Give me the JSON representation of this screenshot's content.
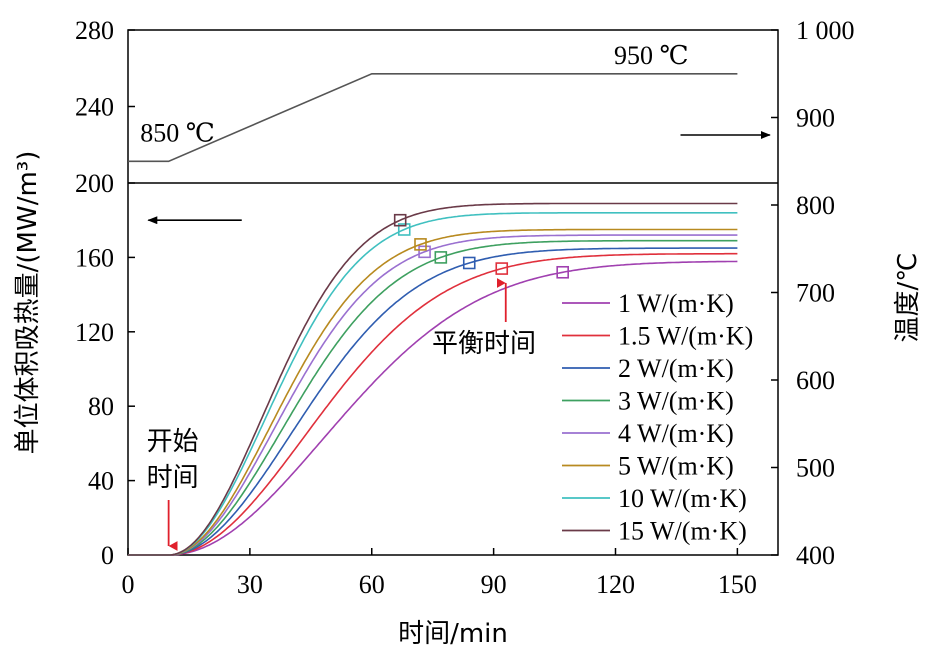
{
  "chart_data": {
    "type": "line",
    "xlabel": "时间/min",
    "ylabel_left": "单位体积吸热量/(MW/m³)",
    "ylabel_right": "温度/℃",
    "x_ticks": [
      "0",
      "30",
      "60",
      "90",
      "120",
      "150"
    ],
    "xlim": [
      0,
      160
    ],
    "left_axis": {
      "ylim": [
        0,
        200
      ],
      "ticks": [
        "0",
        "40",
        "80",
        "120",
        "160"
      ],
      "top_ylim": [
        200,
        280
      ],
      "top_ticks": [
        "200",
        "240",
        "280"
      ]
    },
    "right_axis": {
      "ylim": [
        400,
        1000
      ],
      "ticks": [
        "400",
        "500",
        "600",
        "700",
        "800",
        "900",
        "1 000"
      ]
    },
    "temperature_series": {
      "x": [
        0,
        10,
        60,
        150
      ],
      "y": [
        850,
        850,
        950,
        950
      ],
      "start_label": "850 ℃",
      "end_label": "950 ℃"
    },
    "series": [
      {
        "name": "1 W/(m·K)",
        "color": "#a040b0",
        "plateau": 158,
        "balance_time": 107,
        "balance_value": 152
      },
      {
        "name": "1.5 W/(m·K)",
        "color": "#e0303c",
        "plateau": 162,
        "balance_time": 92,
        "balance_value": 154
      },
      {
        "name": "2 W/(m·K)",
        "color": "#2f5db0",
        "plateau": 165,
        "balance_time": 84,
        "balance_value": 157
      },
      {
        "name": "3 W/(m·K)",
        "color": "#3ea060",
        "plateau": 169,
        "balance_time": 77,
        "balance_value": 160
      },
      {
        "name": "4 W/(m·K)",
        "color": "#9a70d0",
        "plateau": 172,
        "balance_time": 73,
        "balance_value": 163
      },
      {
        "name": "5 W/(m·K)",
        "color": "#b88a20",
        "plateau": 175,
        "balance_time": 72,
        "balance_value": 167
      },
      {
        "name": "10 W/(m·K)",
        "color": "#40c0c0",
        "plateau": 184,
        "balance_time": 68,
        "balance_value": 175
      },
      {
        "name": "15 W/(m·K)",
        "color": "#6a3a48",
        "plateau": 189,
        "balance_time": 67,
        "balance_value": 180
      }
    ],
    "annotations": {
      "start_time": "开始\n时间",
      "start_x": 10,
      "balance_time": "平衡时间",
      "balance_arrow_x": 92
    }
  }
}
